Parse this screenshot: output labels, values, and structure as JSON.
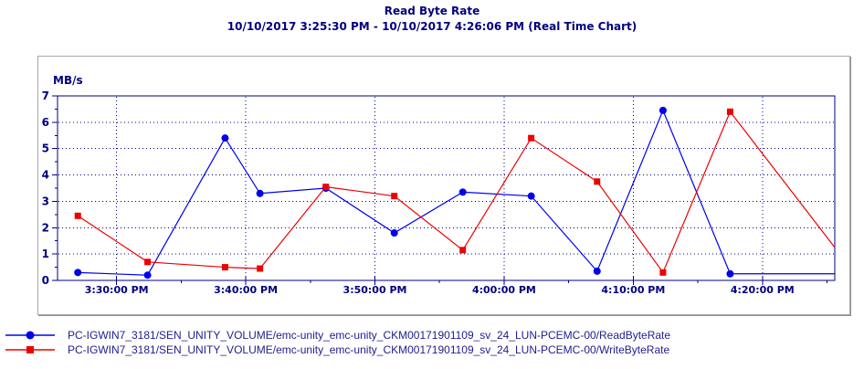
{
  "header": {
    "title": "Read Byte Rate",
    "subtitle": "10/10/2017 3:25:30 PM - 10/10/2017 4:26:06 PM (Real Time Chart)"
  },
  "colors": {
    "title_text": "#000080",
    "axis": "#000080",
    "grid": "#000080",
    "legend_text": "#202090",
    "frame_border": "#a8a8a8",
    "read_series": "#0000ee",
    "write_series": "#ee0000"
  },
  "chart_data": {
    "type": "line",
    "title": "Read Byte Rate",
    "subtitle": "10/10/2017 3:25:30 PM - 10/10/2017 4:26:06 PM (Real Time Chart)",
    "grid": "dotted",
    "legend_position": "bottom-left",
    "x_axis": {
      "t_unit": "minutes after chart start (3:25:30 PM), estimated from plot",
      "t_domain_minutes": [
        0,
        60.1
      ],
      "major_ticks": [
        {
          "t": 4.5,
          "label": "3:30:00 PM"
        },
        {
          "t": 14.5,
          "label": "3:40:00 PM"
        },
        {
          "t": 24.5,
          "label": "3:50:00 PM"
        },
        {
          "t": 34.5,
          "label": "4:00:00 PM"
        },
        {
          "t": 44.5,
          "label": "4:10:00 PM"
        },
        {
          "t": 54.5,
          "label": "4:20:00 PM"
        }
      ],
      "minor_ticks_t": [
        9.5,
        19.5,
        29.5,
        39.5,
        49.5,
        59.5
      ]
    },
    "y_axis": {
      "label": "MB/s",
      "min": 0,
      "max": 7,
      "major_step": 1,
      "minor_step": 0.5,
      "grid_values": [
        1,
        2,
        3,
        4,
        5,
        6
      ],
      "tick_labels": [
        "0",
        "1",
        "2",
        "3",
        "4",
        "5",
        "6",
        "7"
      ]
    },
    "series": [
      {
        "name": "PC-IGWIN7_3181/SEN_UNITY_VOLUME/emc-unity_emc-unity_CKM00171901109_sv_24_LUN-PCEMC-00/ReadByteRate",
        "color": "#0000ee",
        "marker": "circle",
        "points": [
          [
            1.5,
            0.3
          ],
          [
            6.9,
            0.2
          ],
          [
            12.9,
            5.4
          ],
          [
            15.6,
            3.3
          ],
          [
            20.7,
            3.5
          ],
          [
            26.0,
            1.8
          ],
          [
            31.3,
            3.35
          ],
          [
            36.6,
            3.2
          ],
          [
            41.7,
            0.35
          ],
          [
            46.8,
            6.45
          ],
          [
            52.0,
            0.25
          ]
        ],
        "clipped_end": [
          60.1,
          0.25
        ]
      },
      {
        "name": "PC-IGWIN7_3181/SEN_UNITY_VOLUME/emc-unity_emc-unity_CKM00171901109_sv_24_LUN-PCEMC-00/WriteByteRate",
        "color": "#ee0000",
        "marker": "square",
        "points": [
          [
            1.5,
            2.45
          ],
          [
            6.9,
            0.7
          ],
          [
            12.9,
            0.5
          ],
          [
            15.6,
            0.45
          ],
          [
            20.7,
            3.55
          ],
          [
            26.0,
            3.2
          ],
          [
            31.3,
            1.15
          ],
          [
            36.6,
            5.4
          ],
          [
            41.7,
            3.75
          ],
          [
            46.8,
            0.3
          ],
          [
            52.0,
            6.4
          ]
        ],
        "clipped_end": [
          60.1,
          1.25
        ]
      }
    ]
  }
}
